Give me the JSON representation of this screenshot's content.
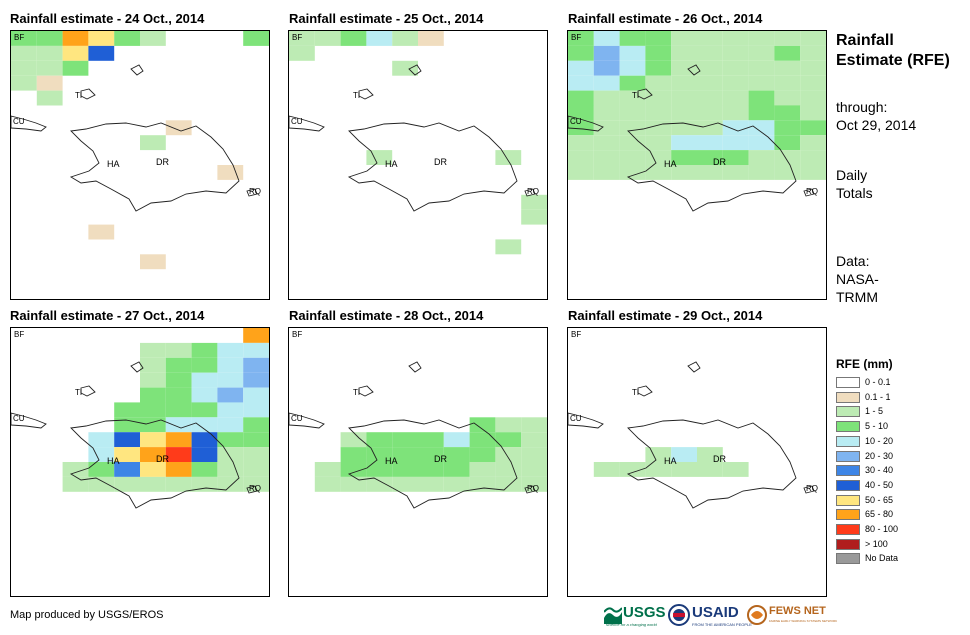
{
  "side": {
    "title": "Rainfall Estimate (RFE)",
    "through_label": "through:",
    "through_date": "Oct 29, 2014",
    "totals": "Daily Totals",
    "data_label": "Data:",
    "data_source": "NASA-TRMM"
  },
  "places": {
    "bf": "BF",
    "ti": "TI",
    "cu": "CU",
    "ha": "HA",
    "dr": "DR",
    "rq": "RQ"
  },
  "panels": [
    {
      "title": "Rainfall estimate - 24 Oct., 2014",
      "cells": [
        [
          "3",
          "3",
          "9",
          "8",
          "3",
          "2",
          0,
          0,
          0,
          "3"
        ],
        [
          "2",
          "2",
          "8",
          "7",
          0,
          0,
          0,
          0,
          0,
          0
        ],
        [
          "2",
          "2",
          "3",
          0,
          0,
          0,
          0,
          0,
          0,
          0
        ],
        [
          "2",
          "1",
          0,
          0,
          0,
          0,
          0,
          0,
          0,
          0
        ],
        [
          0,
          "2",
          0,
          0,
          0,
          0,
          0,
          0,
          0,
          0
        ],
        [
          0,
          0,
          0,
          0,
          0,
          0,
          0,
          0,
          0,
          0
        ],
        [
          0,
          0,
          0,
          0,
          0,
          0,
          "1",
          0,
          0,
          0
        ],
        [
          0,
          0,
          0,
          0,
          0,
          "2",
          0,
          0,
          0,
          0
        ],
        [
          0,
          0,
          0,
          0,
          0,
          0,
          0,
          0,
          0,
          0
        ],
        [
          0,
          0,
          0,
          0,
          0,
          0,
          0,
          0,
          "1",
          0
        ],
        [
          0,
          0,
          0,
          0,
          0,
          0,
          0,
          0,
          0,
          0
        ],
        [
          0,
          0,
          0,
          0,
          0,
          0,
          0,
          0,
          0,
          0
        ],
        [
          0,
          0,
          0,
          0,
          0,
          0,
          0,
          0,
          0,
          0
        ],
        [
          0,
          0,
          0,
          "1",
          0,
          0,
          0,
          0,
          0,
          0
        ],
        [
          0,
          0,
          0,
          0,
          0,
          0,
          0,
          0,
          0,
          0
        ],
        [
          0,
          0,
          0,
          0,
          0,
          "1",
          0,
          0,
          0,
          0
        ],
        [
          0,
          0,
          0,
          0,
          0,
          0,
          0,
          0,
          0,
          0
        ],
        [
          0,
          0,
          0,
          0,
          0,
          0,
          0,
          0,
          0,
          0
        ]
      ]
    },
    {
      "title": "Rainfall estimate - 25 Oct., 2014",
      "cells": [
        [
          "2",
          "2",
          "3",
          "4",
          "2",
          "1",
          0,
          0,
          0,
          0
        ],
        [
          "2",
          0,
          0,
          0,
          0,
          0,
          0,
          0,
          0,
          0
        ],
        [
          0,
          0,
          0,
          0,
          "2",
          0,
          0,
          0,
          0,
          0
        ],
        [
          0,
          0,
          0,
          0,
          0,
          0,
          0,
          0,
          0,
          0
        ],
        [
          0,
          0,
          0,
          0,
          0,
          0,
          0,
          0,
          0,
          0
        ],
        [
          0,
          0,
          0,
          0,
          0,
          0,
          0,
          0,
          0,
          0
        ],
        [
          0,
          0,
          0,
          0,
          0,
          0,
          0,
          0,
          0,
          0
        ],
        [
          0,
          0,
          0,
          0,
          0,
          0,
          0,
          0,
          0,
          0
        ],
        [
          0,
          0,
          0,
          "2",
          0,
          0,
          0,
          0,
          "2",
          0
        ],
        [
          0,
          0,
          0,
          0,
          0,
          0,
          0,
          0,
          0,
          0
        ],
        [
          0,
          0,
          0,
          0,
          0,
          0,
          0,
          0,
          0,
          0
        ],
        [
          0,
          0,
          0,
          0,
          0,
          0,
          0,
          0,
          0,
          "2"
        ],
        [
          0,
          0,
          0,
          0,
          0,
          0,
          0,
          0,
          0,
          "2"
        ],
        [
          0,
          0,
          0,
          0,
          0,
          0,
          0,
          0,
          0,
          0
        ],
        [
          0,
          0,
          0,
          0,
          0,
          0,
          0,
          0,
          "2",
          0
        ],
        [
          0,
          0,
          0,
          0,
          0,
          0,
          0,
          0,
          0,
          0
        ],
        [
          0,
          0,
          0,
          0,
          0,
          0,
          0,
          0,
          0,
          0
        ],
        [
          0,
          0,
          0,
          0,
          0,
          0,
          0,
          0,
          0,
          0
        ]
      ]
    },
    {
      "title": "Rainfall estimate - 26 Oct., 2014",
      "cells": [
        [
          "3",
          "4",
          "3",
          "3",
          "2",
          "2",
          "2",
          "2",
          "2",
          "2"
        ],
        [
          "3",
          "5",
          "4",
          "3",
          "2",
          "2",
          "2",
          "2",
          "3",
          "2"
        ],
        [
          "4",
          "5",
          "4",
          "3",
          "2",
          "2",
          "2",
          "2",
          "2",
          "2"
        ],
        [
          "4",
          "4",
          "3",
          "2",
          "2",
          "2",
          "2",
          "2",
          "2",
          "2"
        ],
        [
          "3",
          "2",
          "2",
          "2",
          "2",
          "2",
          "2",
          "3",
          "2",
          "2"
        ],
        [
          "3",
          "2",
          "2",
          "2",
          "2",
          "2",
          "2",
          "3",
          "3",
          "2"
        ],
        [
          "3",
          "2",
          "2",
          "2",
          "2",
          "2",
          "4",
          "4",
          "3",
          "3"
        ],
        [
          "2",
          "2",
          "2",
          "2",
          "4",
          "4",
          "4",
          "4",
          "3",
          "2"
        ],
        [
          "2",
          "2",
          "2",
          "2",
          "3",
          "3",
          "3",
          "2",
          "2",
          "2"
        ],
        [
          "2",
          "2",
          "2",
          "2",
          "2",
          "2",
          "2",
          "2",
          "2",
          "2"
        ],
        [
          0,
          0,
          0,
          0,
          0,
          0,
          0,
          0,
          0,
          0
        ],
        [
          0,
          0,
          0,
          0,
          0,
          0,
          0,
          0,
          0,
          0
        ],
        [
          0,
          0,
          0,
          0,
          0,
          0,
          0,
          0,
          0,
          0
        ],
        [
          0,
          0,
          0,
          0,
          0,
          0,
          0,
          0,
          0,
          0
        ],
        [
          0,
          0,
          0,
          0,
          0,
          0,
          0,
          0,
          0,
          0
        ],
        [
          0,
          0,
          0,
          0,
          0,
          0,
          0,
          0,
          0,
          0
        ],
        [
          0,
          0,
          0,
          0,
          0,
          0,
          0,
          0,
          0,
          0
        ],
        [
          0,
          0,
          0,
          0,
          0,
          0,
          0,
          0,
          0,
          0
        ]
      ]
    },
    {
      "title": "Rainfall estimate - 27 Oct., 2014",
      "cells": [
        [
          0,
          0,
          0,
          0,
          0,
          0,
          0,
          0,
          0,
          "9"
        ],
        [
          0,
          0,
          0,
          0,
          0,
          "2",
          "2",
          "3",
          "4",
          "4"
        ],
        [
          0,
          0,
          0,
          0,
          0,
          "2",
          "3",
          "3",
          "4",
          "5"
        ],
        [
          0,
          0,
          0,
          0,
          0,
          "2",
          "3",
          "4",
          "4",
          "5"
        ],
        [
          0,
          0,
          0,
          0,
          0,
          "3",
          "3",
          "4",
          "5",
          "4"
        ],
        [
          0,
          0,
          0,
          0,
          "3",
          "3",
          "3",
          "3",
          "4",
          "4"
        ],
        [
          0,
          0,
          0,
          0,
          "3",
          "3",
          "4",
          "4",
          "4",
          "3"
        ],
        [
          0,
          0,
          0,
          "4",
          "7",
          "8",
          "9",
          "7",
          "3",
          "3"
        ],
        [
          0,
          0,
          0,
          "4",
          "8",
          "9",
          "10",
          "7",
          "2",
          "2"
        ],
        [
          0,
          0,
          "2",
          "3",
          "6",
          "8",
          "9",
          "3",
          "2",
          "2"
        ],
        [
          0,
          0,
          "2",
          "2",
          "2",
          "2",
          "2",
          "2",
          "2",
          "2"
        ],
        [
          0,
          0,
          0,
          0,
          0,
          0,
          0,
          0,
          0,
          0
        ],
        [
          0,
          0,
          0,
          0,
          0,
          0,
          0,
          0,
          0,
          0
        ],
        [
          0,
          0,
          0,
          0,
          0,
          0,
          0,
          0,
          0,
          0
        ],
        [
          0,
          0,
          0,
          0,
          0,
          0,
          0,
          0,
          0,
          0
        ],
        [
          0,
          0,
          0,
          0,
          0,
          0,
          0,
          0,
          0,
          0
        ],
        [
          0,
          0,
          0,
          0,
          0,
          0,
          0,
          0,
          0,
          0
        ],
        [
          0,
          0,
          0,
          0,
          0,
          0,
          0,
          0,
          0,
          0
        ]
      ]
    },
    {
      "title": "Rainfall estimate - 28 Oct., 2014",
      "cells": [
        [
          0,
          0,
          0,
          0,
          0,
          0,
          0,
          0,
          0,
          0
        ],
        [
          0,
          0,
          0,
          0,
          0,
          0,
          0,
          0,
          0,
          0
        ],
        [
          0,
          0,
          0,
          0,
          0,
          0,
          0,
          0,
          0,
          0
        ],
        [
          0,
          0,
          0,
          0,
          0,
          0,
          0,
          0,
          0,
          0
        ],
        [
          0,
          0,
          0,
          0,
          0,
          0,
          0,
          0,
          0,
          0
        ],
        [
          0,
          0,
          0,
          0,
          0,
          0,
          0,
          0,
          0,
          0
        ],
        [
          0,
          0,
          0,
          0,
          0,
          0,
          0,
          "3",
          "2",
          "2"
        ],
        [
          0,
          0,
          "2",
          "3",
          "3",
          "3",
          "4",
          "3",
          "3",
          "2"
        ],
        [
          0,
          0,
          "3",
          "3",
          "3",
          "3",
          "3",
          "3",
          "2",
          "2"
        ],
        [
          0,
          "2",
          "3",
          "3",
          "3",
          "3",
          "3",
          "2",
          "2",
          "2"
        ],
        [
          0,
          "2",
          "2",
          "2",
          "2",
          "2",
          "2",
          "2",
          "2",
          "2"
        ],
        [
          0,
          0,
          0,
          0,
          0,
          0,
          0,
          0,
          0,
          0
        ],
        [
          0,
          0,
          0,
          0,
          0,
          0,
          0,
          0,
          0,
          0
        ],
        [
          0,
          0,
          0,
          0,
          0,
          0,
          0,
          0,
          0,
          0
        ],
        [
          0,
          0,
          0,
          0,
          0,
          0,
          0,
          0,
          0,
          0
        ],
        [
          0,
          0,
          0,
          0,
          0,
          0,
          0,
          0,
          0,
          0
        ],
        [
          0,
          0,
          0,
          0,
          0,
          0,
          0,
          0,
          0,
          0
        ],
        [
          0,
          0,
          0,
          0,
          0,
          0,
          0,
          0,
          0,
          0
        ]
      ]
    },
    {
      "title": "Rainfall estimate - 29 Oct., 2014",
      "cells": [
        [
          0,
          0,
          0,
          0,
          0,
          0,
          0,
          0,
          0,
          0
        ],
        [
          0,
          0,
          0,
          0,
          0,
          0,
          0,
          0,
          0,
          0
        ],
        [
          0,
          0,
          0,
          0,
          0,
          0,
          0,
          0,
          0,
          0
        ],
        [
          0,
          0,
          0,
          0,
          0,
          0,
          0,
          0,
          0,
          0
        ],
        [
          0,
          0,
          0,
          0,
          0,
          0,
          0,
          0,
          0,
          0
        ],
        [
          0,
          0,
          0,
          0,
          0,
          0,
          0,
          0,
          0,
          0
        ],
        [
          0,
          0,
          0,
          0,
          0,
          0,
          0,
          0,
          0,
          0
        ],
        [
          0,
          0,
          0,
          0,
          0,
          0,
          0,
          0,
          0,
          0
        ],
        [
          0,
          0,
          0,
          "2",
          "4",
          "2",
          0,
          0,
          0,
          0
        ],
        [
          0,
          "2",
          "2",
          "2",
          "2",
          "2",
          "2",
          0,
          0,
          0
        ],
        [
          0,
          0,
          0,
          0,
          0,
          0,
          0,
          0,
          0,
          0
        ],
        [
          0,
          0,
          0,
          0,
          0,
          0,
          0,
          0,
          0,
          0
        ],
        [
          0,
          0,
          0,
          0,
          0,
          0,
          0,
          0,
          0,
          0
        ],
        [
          0,
          0,
          0,
          0,
          0,
          0,
          0,
          0,
          0,
          0
        ],
        [
          0,
          0,
          0,
          0,
          0,
          0,
          0,
          0,
          0,
          0
        ],
        [
          0,
          0,
          0,
          0,
          0,
          0,
          0,
          0,
          0,
          0
        ],
        [
          0,
          0,
          0,
          0,
          0,
          0,
          0,
          0,
          0,
          0
        ],
        [
          0,
          0,
          0,
          0,
          0,
          0,
          0,
          0,
          0,
          0
        ]
      ]
    }
  ],
  "legend": {
    "title": "RFE (mm)",
    "items": [
      {
        "label": "0 - 0.1",
        "color": "#ffffff"
      },
      {
        "label": "0.1 - 1",
        "color": "#f0ddbf"
      },
      {
        "label": "1 - 5",
        "color": "#bdebb4"
      },
      {
        "label": "5 - 10",
        "color": "#7ee37a"
      },
      {
        "label": "10 - 20",
        "color": "#b9ecf3"
      },
      {
        "label": "20 - 30",
        "color": "#7fb4f0"
      },
      {
        "label": "30 - 40",
        "color": "#3d85e6"
      },
      {
        "label": "40 - 50",
        "color": "#1f5fd6"
      },
      {
        "label": "50 - 65",
        "color": "#ffe680"
      },
      {
        "label": "65 - 80",
        "color": "#ffa31a"
      },
      {
        "label": "80 - 100",
        "color": "#ff3b1a"
      },
      {
        "label": "> 100",
        "color": "#b01d1d"
      },
      {
        "label": "No Data",
        "color": "#999999"
      }
    ]
  },
  "credit": "Map produced by USGS/EROS",
  "logos": {
    "usgs": "USGS",
    "usgs_tagline": "science for a changing world",
    "usaid": "USAID",
    "usaid_tagline": "FROM THE AMERICAN PEOPLE",
    "fewsnet": "FEWS NET",
    "fewsnet_tagline": "FAMINE EARLY WARNING SYSTEMS NETWORK"
  }
}
